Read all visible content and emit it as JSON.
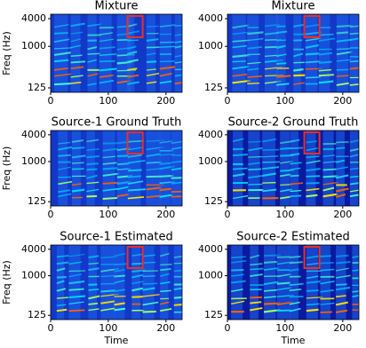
{
  "chart_data": [
    {
      "type": "spectrogram",
      "title": "Mixture",
      "ylabel": "Freq (Hz)",
      "xlim": [
        0,
        228
      ],
      "xticks": [
        0,
        100,
        200
      ],
      "ylim": [
        100,
        5000
      ],
      "yticks": [
        125,
        1000,
        4000
      ],
      "yscale": "log"
    },
    {
      "type": "spectrogram",
      "title": "Mixture",
      "xlim": [
        0,
        228
      ],
      "xticks": [
        0,
        100,
        200
      ],
      "ylim": [
        100,
        5000
      ],
      "yticks": [
        125,
        1000,
        4000
      ],
      "yscale": "log"
    },
    {
      "type": "spectrogram",
      "title": "Source-1 Ground Truth",
      "ylabel": "Freq (Hz)",
      "xlim": [
        0,
        228
      ],
      "xticks": [
        0,
        100,
        200
      ],
      "ylim": [
        100,
        5000
      ],
      "yticks": [
        125,
        1000,
        4000
      ],
      "yscale": "log"
    },
    {
      "type": "spectrogram",
      "title": "Source-2 Ground Truth",
      "xlim": [
        0,
        228
      ],
      "xticks": [
        0,
        100,
        200
      ],
      "ylim": [
        100,
        5000
      ],
      "yticks": [
        125,
        1000,
        4000
      ],
      "yscale": "log"
    },
    {
      "type": "spectrogram",
      "title": "Source-1 Estimated",
      "ylabel": "Freq (Hz)",
      "xlabel": "Time",
      "xlim": [
        0,
        228
      ],
      "xticks": [
        0,
        100,
        200
      ],
      "ylim": [
        100,
        5000
      ],
      "yticks": [
        125,
        1000,
        4000
      ],
      "yscale": "log"
    },
    {
      "type": "spectrogram",
      "title": "Source-2 Estimated",
      "xlabel": "Time",
      "xlim": [
        0,
        228
      ],
      "xticks": [
        0,
        100,
        200
      ],
      "ylim": [
        100,
        5000
      ],
      "yticks": [
        125,
        1000,
        4000
      ],
      "yscale": "log"
    }
  ]
}
